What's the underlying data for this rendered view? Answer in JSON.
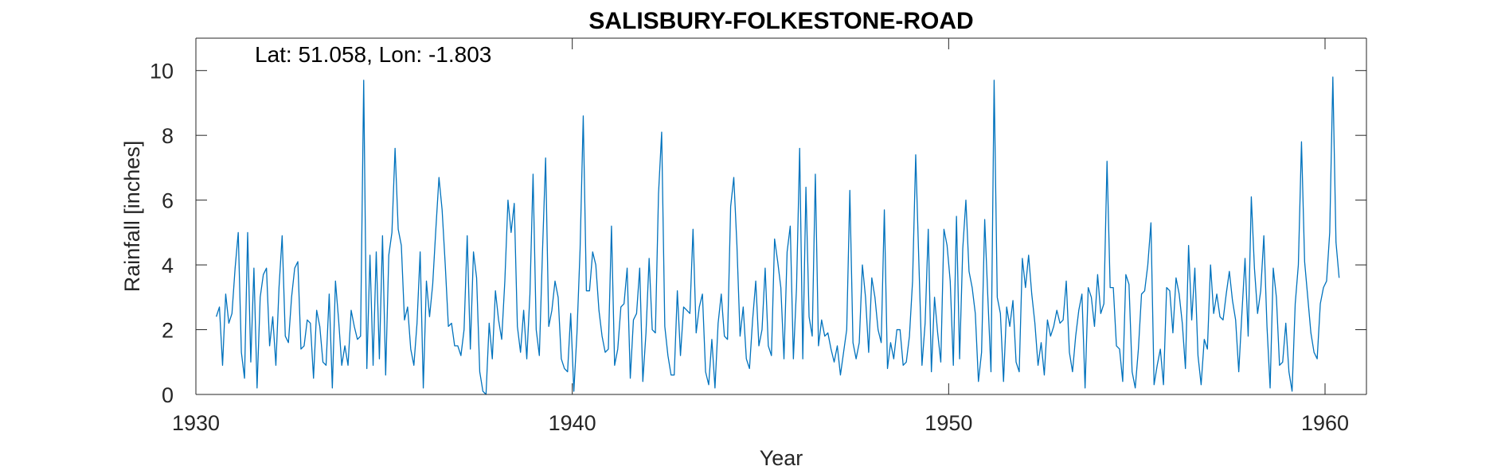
{
  "chart_data": {
    "type": "line",
    "title": "SALISBURY-FOLKESTONE-ROAD",
    "xlabel": "Year",
    "ylabel": "Rainfall [inches]",
    "annotation": "Lat: 51.058, Lon: -1.803",
    "xlim": [
      1930,
      1961.1
    ],
    "ylim": [
      0,
      11
    ],
    "xticks": [
      1930,
      1940,
      1950,
      1960
    ],
    "yticks": [
      0,
      2,
      4,
      6,
      8,
      10
    ],
    "grid": false,
    "legend": "none",
    "colors": {
      "line": "#0072BD",
      "axes": "#262626",
      "background": "#ffffff"
    },
    "series": [
      {
        "x_start": 1930.542,
        "x_step": 0.08333,
        "values": [
          2.4,
          2.7,
          0.9,
          3.1,
          2.2,
          2.5,
          3.9,
          5.0,
          1.3,
          0.5,
          5.0,
          1.0,
          3.9,
          0.2,
          3.0,
          3.7,
          3.9,
          1.5,
          2.4,
          0.9,
          3.3,
          4.9,
          1.8,
          1.6,
          3.0,
          3.9,
          4.1,
          1.4,
          1.5,
          2.3,
          2.2,
          0.5,
          2.6,
          2.1,
          1.0,
          0.9,
          3.1,
          0.2,
          3.5,
          2.3,
          0.9,
          1.5,
          0.9,
          2.6,
          2.1,
          1.7,
          1.8,
          9.7,
          0.8,
          4.3,
          0.9,
          4.4,
          1.1,
          4.9,
          0.6,
          4.3,
          5.0,
          7.6,
          5.1,
          4.6,
          2.3,
          2.7,
          1.4,
          0.9,
          2.2,
          4.4,
          0.2,
          3.5,
          2.4,
          3.4,
          5.1,
          6.7,
          5.7,
          4.0,
          2.1,
          2.2,
          1.5,
          1.5,
          1.2,
          2.0,
          4.9,
          1.4,
          4.4,
          3.6,
          0.7,
          0.1,
          0.0,
          2.2,
          1.1,
          3.2,
          2.3,
          1.7,
          3.5,
          6.0,
          5.0,
          5.9,
          2.1,
          1.3,
          2.6,
          1.1,
          3.1,
          6.8,
          2.0,
          1.2,
          4.4,
          7.3,
          2.1,
          2.6,
          3.5,
          3.0,
          1.1,
          0.8,
          0.7,
          2.5,
          0.1,
          1.9,
          4.5,
          8.6,
          3.2,
          3.2,
          4.4,
          4.0,
          2.6,
          1.8,
          1.3,
          1.4,
          5.2,
          0.9,
          1.4,
          2.7,
          2.8,
          3.9,
          0.5,
          2.3,
          2.5,
          3.9,
          0.4,
          1.9,
          4.2,
          2.0,
          1.9,
          6.2,
          8.1,
          2.1,
          1.2,
          0.6,
          0.6,
          3.2,
          1.2,
          2.7,
          2.6,
          2.5,
          5.1,
          1.9,
          2.7,
          3.1,
          0.7,
          0.3,
          1.7,
          0.2,
          2.2,
          3.1,
          1.8,
          1.7,
          5.8,
          6.7,
          4.6,
          1.8,
          2.7,
          1.1,
          0.8,
          2.3,
          3.5,
          1.5,
          2.0,
          3.9,
          1.5,
          1.2,
          4.8,
          4.1,
          3.3,
          1.1,
          4.4,
          5.2,
          1.1,
          3.3,
          7.6,
          1.1,
          6.4,
          2.4,
          1.8,
          6.8,
          1.5,
          2.3,
          1.8,
          1.9,
          1.4,
          1.0,
          1.5,
          0.6,
          1.3,
          2.0,
          6.3,
          1.6,
          1.1,
          1.6,
          4.0,
          3.0,
          1.3,
          3.6,
          3.0,
          2.0,
          1.6,
          5.7,
          0.8,
          1.6,
          1.1,
          2.0,
          2.0,
          0.9,
          1.0,
          1.8,
          3.5,
          7.4,
          4.1,
          0.9,
          2.2,
          5.1,
          0.7,
          3.0,
          1.9,
          1.0,
          5.1,
          4.6,
          3.5,
          0.9,
          5.5,
          1.1,
          4.5,
          6.0,
          3.8,
          3.3,
          2.5,
          0.4,
          1.3,
          5.4,
          3.0,
          0.7,
          9.7,
          3.0,
          2.5,
          0.4,
          2.7,
          2.1,
          2.9,
          1.0,
          0.7,
          4.2,
          3.3,
          4.3,
          3.1,
          2.2,
          0.9,
          1.6,
          0.6,
          2.3,
          1.8,
          2.1,
          2.6,
          2.2,
          2.3,
          3.5,
          1.3,
          0.7,
          1.8,
          2.6,
          3.1,
          0.2,
          3.3,
          3.0,
          2.1,
          3.7,
          2.5,
          2.8,
          7.2,
          3.3,
          3.3,
          1.5,
          1.4,
          0.4,
          3.7,
          3.4,
          0.7,
          0.2,
          1.4,
          3.1,
          3.2,
          4.0,
          5.3,
          0.3,
          0.9,
          1.4,
          0.3,
          3.3,
          3.2,
          1.9,
          3.6,
          3.1,
          2.2,
          0.8,
          4.6,
          2.3,
          3.9,
          1.2,
          0.3,
          1.7,
          1.4,
          4.0,
          2.5,
          3.1,
          2.4,
          2.3,
          3.1,
          3.8,
          2.9,
          2.3,
          0.7,
          2.5,
          4.2,
          1.8,
          6.1,
          3.9,
          2.5,
          3.2,
          4.9,
          2.1,
          0.2,
          3.9,
          3.0,
          0.9,
          1.0,
          2.2,
          0.7,
          0.1,
          2.8,
          4.0,
          7.8,
          4.1,
          3.0,
          1.9,
          1.3,
          1.1,
          2.8,
          3.3,
          3.5,
          5.0,
          9.8,
          4.7,
          3.6
        ]
      }
    ]
  }
}
